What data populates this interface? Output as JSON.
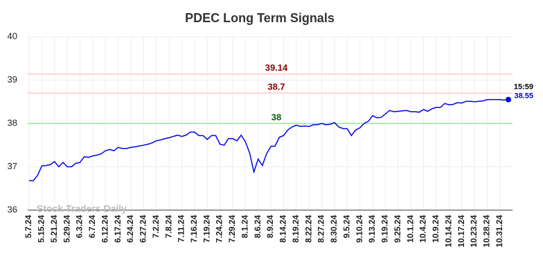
{
  "chart_data": {
    "type": "line",
    "title": "PDEC Long Term Signals",
    "categories": [
      "5.7.24",
      null,
      null,
      "5.15.24",
      null,
      null,
      "5.21.24",
      null,
      null,
      "5.29.24",
      null,
      null,
      "6.3.24",
      null,
      null,
      "6.7.24",
      null,
      null,
      "6.12.24",
      null,
      null,
      "6.17.24",
      null,
      null,
      "6.24.24",
      null,
      null,
      "6.27.24",
      null,
      null,
      "7.2.24",
      null,
      null,
      "7.8.24",
      null,
      null,
      "7.11.24",
      null,
      null,
      "7.16.24",
      null,
      null,
      "7.19.24",
      null,
      null,
      "7.24.24",
      null,
      null,
      "7.29.24",
      null,
      null,
      "8.1.24",
      null,
      null,
      "8.6.24",
      null,
      null,
      "8.9.24",
      null,
      null,
      "8.14.24",
      null,
      null,
      "8.19.24",
      null,
      null,
      "8.22.24",
      null,
      null,
      "8.27.24",
      null,
      null,
      "8.30.24",
      null,
      null,
      "9.5.24",
      null,
      null,
      "9.10.24",
      null,
      null,
      "9.13.24",
      null,
      null,
      "9.19.24",
      null,
      null,
      "9.25.24",
      null,
      null,
      "10.1.24",
      null,
      null,
      "10.4.24",
      null,
      null,
      "10.9.24",
      null,
      null,
      "10.14.24",
      null,
      null,
      "10.17.24",
      null,
      null,
      "10.23.24",
      null,
      null,
      "10.28.24",
      null,
      null,
      "10.31.24",
      null,
      null
    ],
    "values": [
      36.68,
      36.68,
      36.8,
      37.02,
      37.03,
      37.05,
      37.12,
      37.0,
      37.1,
      37.0,
      37.0,
      37.08,
      37.1,
      37.23,
      37.22,
      37.25,
      37.27,
      37.3,
      37.37,
      37.4,
      37.37,
      37.45,
      37.42,
      37.42,
      37.45,
      37.46,
      37.48,
      37.5,
      37.52,
      37.55,
      37.6,
      37.62,
      37.65,
      37.67,
      37.7,
      37.73,
      37.7,
      37.73,
      37.8,
      37.8,
      37.72,
      37.72,
      37.63,
      37.72,
      37.72,
      37.52,
      37.5,
      37.65,
      37.65,
      37.6,
      37.73,
      37.58,
      37.32,
      36.88,
      37.18,
      37.03,
      37.3,
      37.47,
      37.48,
      37.68,
      37.72,
      37.85,
      37.92,
      37.96,
      37.93,
      37.94,
      37.93,
      37.97,
      37.97,
      38.0,
      37.97,
      37.98,
      38.02,
      37.92,
      37.88,
      37.88,
      37.72,
      37.85,
      37.9,
      38.0,
      38.05,
      38.18,
      38.13,
      38.14,
      38.22,
      38.3,
      38.27,
      38.28,
      38.29,
      38.3,
      38.27,
      38.27,
      38.26,
      38.32,
      38.28,
      38.34,
      38.37,
      38.37,
      38.46,
      38.43,
      38.44,
      38.48,
      38.47,
      38.51,
      38.51,
      38.5,
      38.51,
      38.52,
      38.55,
      38.55,
      38.55,
      38.55,
      38.54,
      38.55
    ],
    "color": "#0000ee",
    "ylim": [
      36,
      40
    ],
    "yticks": [
      36,
      37,
      38,
      39,
      40
    ],
    "grid": true,
    "hlines": [
      {
        "value": 39.14,
        "color": "#ffc8c8",
        "label_color": "#8b0000"
      },
      {
        "value": 38.7,
        "color": "#ffc8c8",
        "label_color": "#8b0000"
      },
      {
        "value": 38,
        "color": "#90ee90",
        "label_color": "#006400"
      }
    ],
    "last_time": "15:59",
    "watermark": "Stock Traders Daily"
  }
}
